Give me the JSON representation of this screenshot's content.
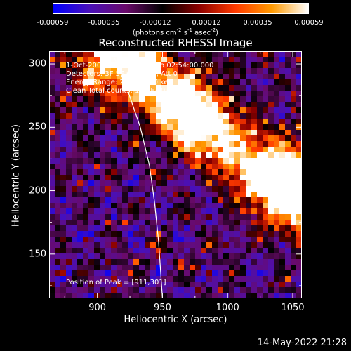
{
  "colorbar": {
    "ticks": [
      "-0.00059",
      "-0.00035",
      "-0.00012",
      "0.00012",
      "0.00035",
      "0.00059"
    ],
    "unit_prefix": "(photons cm",
    "unit_exp1": "-2",
    "unit_mid": " s",
    "unit_exp2": "-1",
    "unit_mid2": " asec",
    "unit_exp3": "-2",
    "unit_suffix": ")",
    "colors": [
      "#0000ff",
      "#4a10b8",
      "#6a0a6a",
      "#000000",
      "#8b0000",
      "#ff3a00",
      "#ff9a00",
      "#ffffff"
    ]
  },
  "title": "Reconstructed RHESSI Image",
  "annotations": {
    "time_range": "1-Oct-2002 02:52:00.000 to 02:54:00.000",
    "detectors": "Detectors: 3F 5F 6F 7F 8F, Att 0",
    "energy": "Energy Range: 25.0 - 50.0 keV",
    "clean": "Clean     Total counts: 1.94E+03",
    "peak": "Position of Peak = [911,301]"
  },
  "timestamp": "14-May-2022 21:28",
  "chart_data": {
    "type": "heatmap",
    "title": "Reconstructed RHESSI Image",
    "xlabel": "Heliocentric X (arcsec)",
    "ylabel": "Heliocentric Y (arcsec)",
    "xlim": [
      863,
      1057
    ],
    "ylim": [
      115,
      310
    ],
    "xticks": [
      "900",
      "950",
      "1000",
      "1050"
    ],
    "xtick_values": [
      900,
      950,
      1000,
      1050
    ],
    "yticks": [
      "150",
      "200",
      "250",
      "300"
    ],
    "ytick_values": [
      150,
      200,
      250,
      300
    ],
    "value_range": [
      -0.00059,
      0.00059
    ],
    "peak_position": [
      911,
      301
    ],
    "limb_curve": [
      [
        911,
        310
      ],
      [
        923,
        280
      ],
      [
        933,
        250
      ],
      [
        940,
        220
      ],
      [
        944,
        190
      ],
      [
        947,
        160
      ],
      [
        949,
        130
      ],
      [
        950,
        115
      ]
    ],
    "bright_sources": [
      {
        "x": 915,
        "y": 300,
        "value": 0.00059
      },
      {
        "x": 975,
        "y": 260,
        "value": 0.0004
      },
      {
        "x": 1045,
        "y": 210,
        "value": 0.00055
      }
    ]
  }
}
